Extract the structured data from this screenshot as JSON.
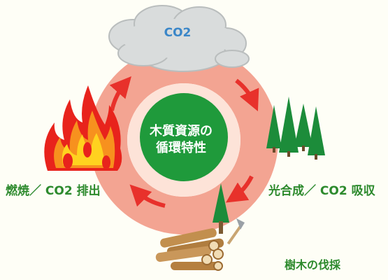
{
  "diagram": {
    "center_title_line1": "木質資源の",
    "center_title_line2": "循環特性",
    "cloud_label": "CO2",
    "label_combustion": "燃焼／ CO2 排出",
    "label_photosynthesis": "光合成／ CO2 吸収",
    "label_harvest": "樹木の伐採"
  },
  "colors": {
    "ring": "#f3a492",
    "ring_inner": "#fde3d8",
    "center_circle": "#1f9a3b",
    "arrow": "#e8312b",
    "text_green": "#2d8a2d",
    "co2_blue": "#3a86c8",
    "cloud": "#d9dcdc",
    "tree": "#1c8c3a",
    "flame_outer": "#e8231c",
    "flame_inner": "#ffd21f"
  },
  "icons": [
    "cloud-icon",
    "fire-icon",
    "forest-icon",
    "tree-icon",
    "logs-icon",
    "axe-icon"
  ]
}
